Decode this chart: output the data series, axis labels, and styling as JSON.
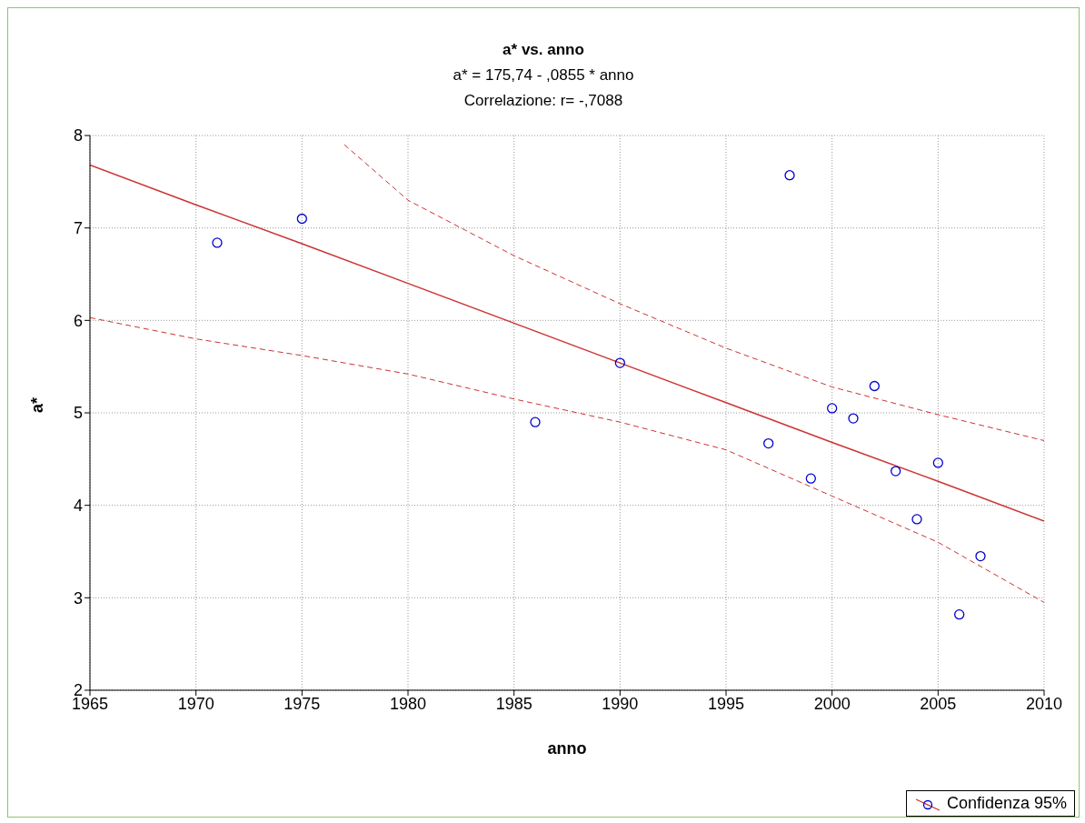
{
  "chart_data": {
    "type": "scatter",
    "title": "a* vs. anno",
    "subtitle": "a* = 175,74 - ,0855 * anno",
    "annotations": [
      "Correlazione: r= -,7088"
    ],
    "xlabel": "anno",
    "ylabel": "a*",
    "xlim": [
      1965,
      2010
    ],
    "xticks": [
      1965,
      1970,
      1975,
      1980,
      1985,
      1990,
      1995,
      2000,
      2005,
      2010
    ],
    "ylim": [
      2,
      8
    ],
    "yticks": [
      2,
      3,
      4,
      5,
      6,
      7,
      8
    ],
    "grid": true,
    "legend": "bottom right",
    "series": [
      {
        "color": "#0000cc",
        "marker": "circle",
        "x": [
          1971,
          1975,
          1986,
          1990,
          1997,
          1998,
          1999,
          2000,
          2001,
          2002,
          2003,
          2004,
          2005,
          2006,
          2007
        ],
        "values": [
          6.84,
          7.1,
          4.9,
          5.54,
          4.67,
          7.57,
          4.29,
          5.05,
          4.94,
          5.29,
          4.37,
          3.85,
          4.46,
          2.82,
          3.45
        ]
      },
      {
        "type": "line",
        "name": "Confidenza 95%",
        "color": "#cc3333",
        "marker": "none",
        "line_style": "solid",
        "x": [
          1965,
          1970,
          1975,
          1980,
          1985,
          1990,
          1995,
          2000,
          2005,
          2010
        ],
        "values": [
          7.68,
          7.25,
          6.83,
          6.4,
          5.97,
          5.54,
          5.11,
          4.68,
          4.26,
          3.83
        ]
      },
      {
        "type": "line",
        "color": "#cc3333",
        "marker": "none",
        "line_style": "dashed",
        "x": [
          1965,
          1970,
          1975,
          1980,
          1985,
          1990,
          1995,
          2000,
          2005,
          2010
        ],
        "values": [
          6.03,
          5.8,
          5.62,
          5.42,
          5.15,
          4.9,
          4.6,
          4.1,
          3.6,
          2.95
        ]
      },
      {
        "type": "line",
        "color": "#cc3333",
        "marker": "none",
        "line_style": "dashed",
        "x": [
          1977,
          1980,
          1985,
          1990,
          1995,
          2000,
          2005,
          2010
        ],
        "values": [
          7.9,
          7.3,
          6.7,
          6.18,
          5.7,
          5.28,
          4.98,
          4.7
        ]
      }
    ]
  }
}
